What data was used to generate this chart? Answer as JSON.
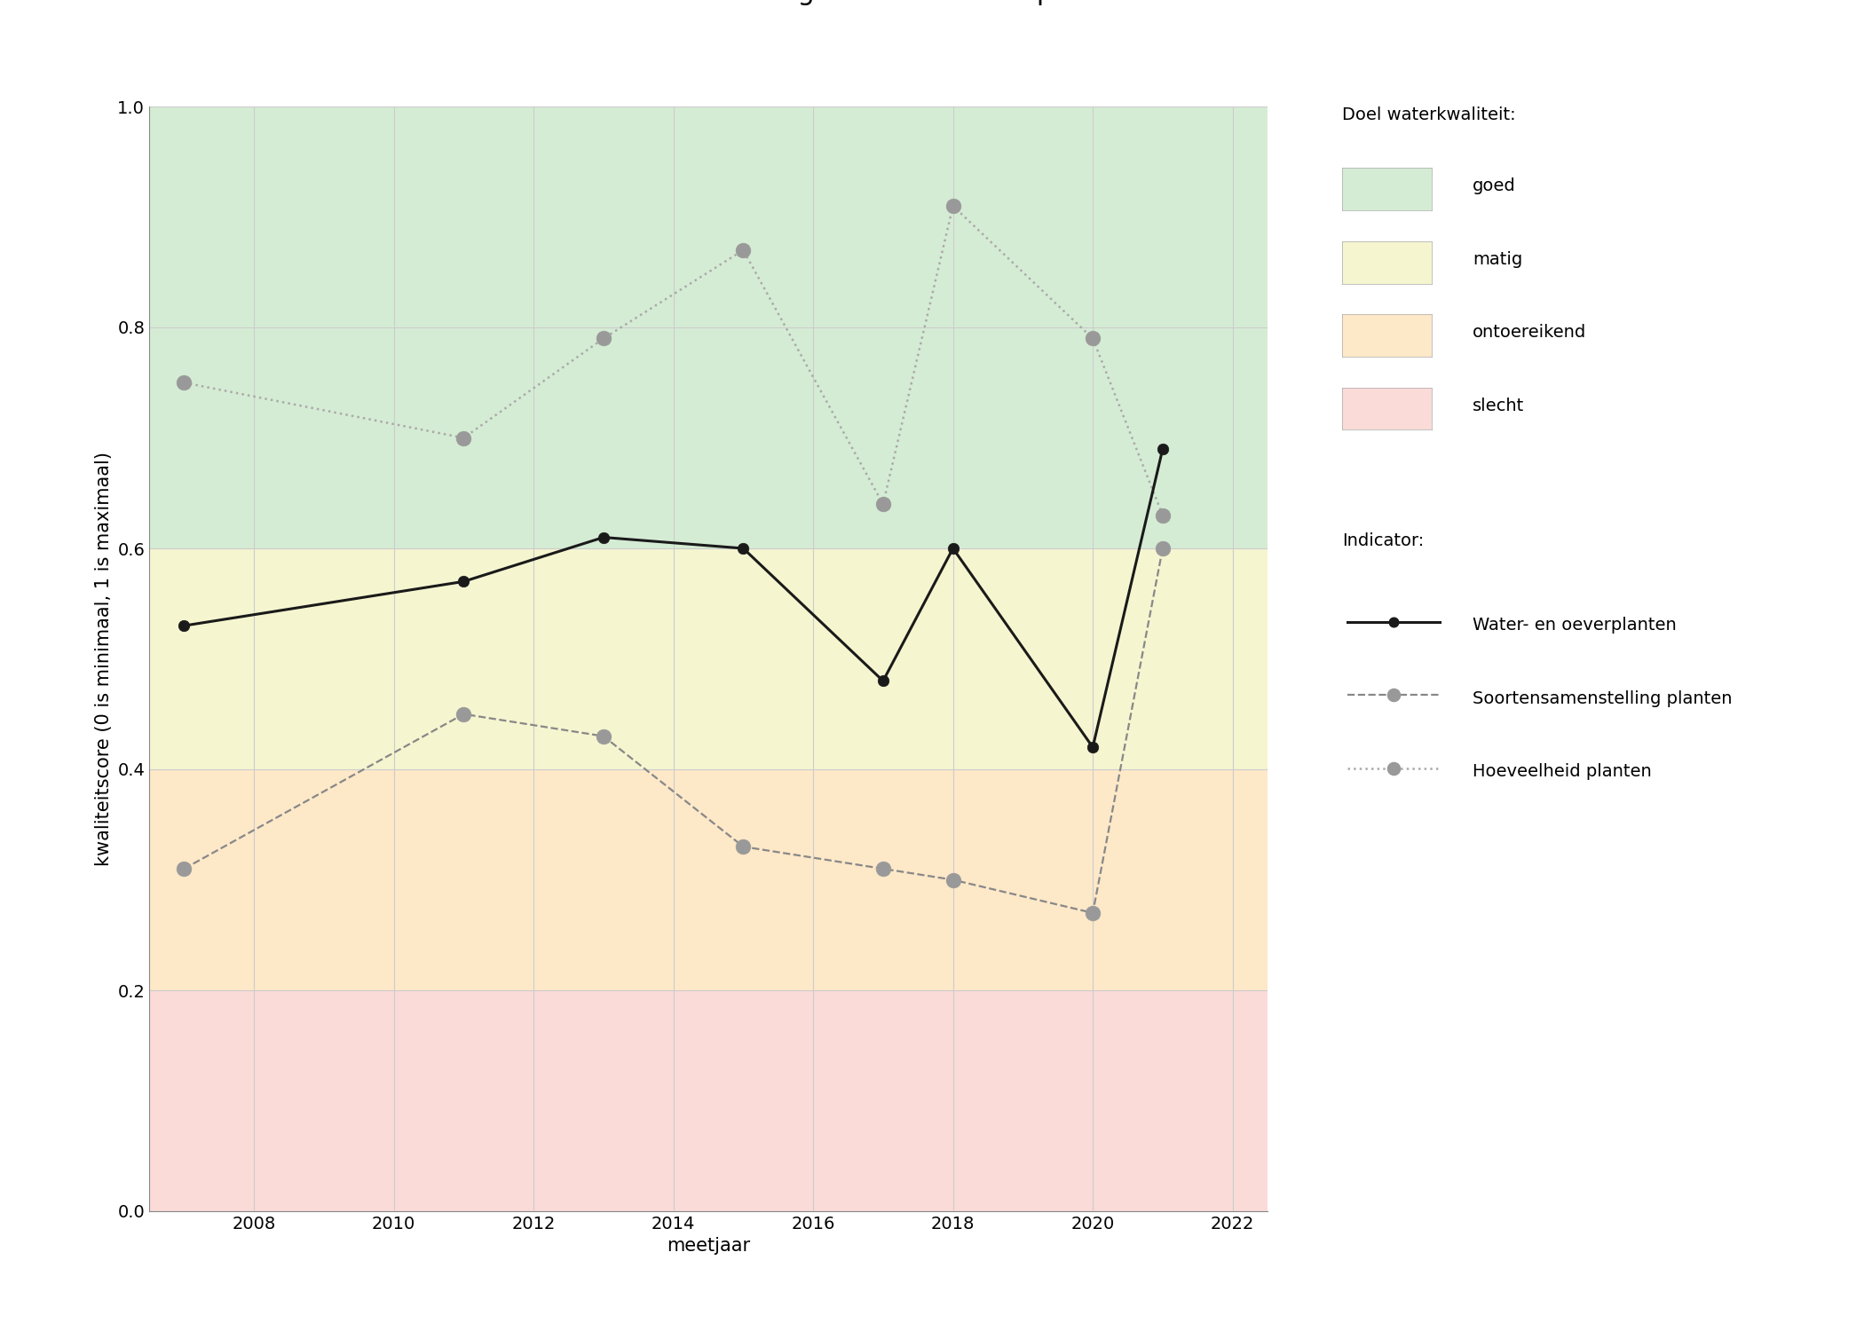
{
  "title": "Deelscores hoeveelheid en soortensamenstelling water- en oeverplanten",
  "xlabel": "meetjaar",
  "ylabel": "kwaliteitscore (0 is minimaal, 1 is maximaal)",
  "xlim": [
    2006.5,
    2022.5
  ],
  "ylim": [
    0.0,
    1.0
  ],
  "xticks": [
    2008,
    2010,
    2012,
    2014,
    2016,
    2018,
    2020,
    2022
  ],
  "yticks": [
    0.0,
    0.2,
    0.4,
    0.6,
    0.8,
    1.0
  ],
  "bg_color": "#ffffff",
  "plot_bg_color": "#ffffff",
  "zones": [
    {
      "ymin": 0.6,
      "ymax": 1.0,
      "color": "#d5ecd4",
      "label": "goed"
    },
    {
      "ymin": 0.4,
      "ymax": 0.6,
      "color": "#f5f5d0",
      "label": "matig"
    },
    {
      "ymin": 0.2,
      "ymax": 0.4,
      "color": "#fde8c8",
      "label": "ontoereikend"
    },
    {
      "ymin": 0.0,
      "ymax": 0.2,
      "color": "#fadbd8",
      "label": "slecht"
    }
  ],
  "series": {
    "water_oever": {
      "years": [
        2007,
        2011,
        2013,
        2015,
        2017,
        2018,
        2020,
        2021
      ],
      "values": [
        0.53,
        0.57,
        0.61,
        0.6,
        0.48,
        0.6,
        0.42,
        0.69
      ],
      "color": "#1a1a1a",
      "linestyle": "solid",
      "linewidth": 2.2,
      "marker": "o",
      "markersize": 9,
      "markerfacecolor": "#1a1a1a",
      "markeredgecolor": "#1a1a1a",
      "label": "Water- en oeverplanten"
    },
    "soorten": {
      "years": [
        2007,
        2011,
        2013,
        2015,
        2017,
        2018,
        2020,
        2021
      ],
      "values": [
        0.31,
        0.45,
        0.43,
        0.33,
        0.31,
        0.3,
        0.27,
        0.6
      ],
      "color": "#888888",
      "linestyle": "dashed",
      "linewidth": 1.6,
      "marker": "o",
      "markersize": 12,
      "markerfacecolor": "#999999",
      "markeredgecolor": "#999999",
      "label": "Soortensamenstelling planten"
    },
    "hoeveelheid": {
      "years": [
        2007,
        2011,
        2013,
        2015,
        2017,
        2018,
        2020,
        2021
      ],
      "values": [
        0.75,
        0.7,
        0.79,
        0.87,
        0.64,
        0.91,
        0.79,
        0.63
      ],
      "color": "#aaaaaa",
      "linestyle": "dotted",
      "linewidth": 1.8,
      "marker": "o",
      "markersize": 12,
      "markerfacecolor": "#999999",
      "markeredgecolor": "#999999",
      "label": "Hoeveelheid planten"
    }
  },
  "legend_zone_title": "Doel waterkwaliteit:",
  "legend_indicator_title": "Indicator:",
  "grid_color": "#cccccc",
  "title_fontsize": 22,
  "label_fontsize": 15,
  "tick_fontsize": 14,
  "legend_fontsize": 14
}
